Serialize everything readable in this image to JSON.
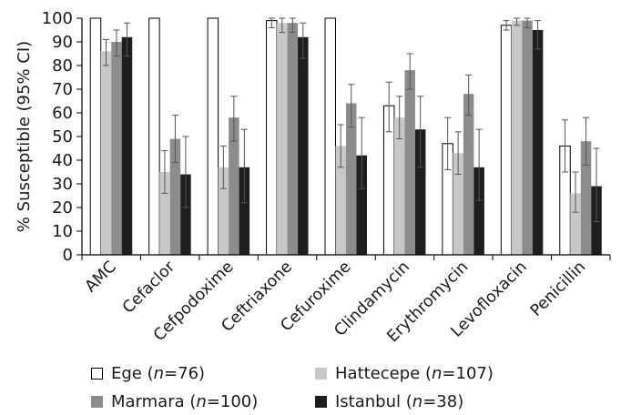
{
  "chart_data": {
    "type": "bar",
    "ylabel": "% Susceptible (95% CI)",
    "ylim": [
      0,
      100
    ],
    "yticks": [
      "0",
      "10",
      "20",
      "30",
      "40",
      "50",
      "60",
      "70",
      "80",
      "90",
      "100"
    ],
    "categories": [
      "AMC",
      "Cefaclor",
      "Cefpodoxime",
      "Ceftriaxone",
      "Cefuroxime",
      "Clindamycin",
      "Erythromycin",
      "Levofloxacin",
      "Penicillin"
    ],
    "series": [
      {
        "name": "Ege",
        "n": "76",
        "color": "#ffffff",
        "values": [
          100,
          100,
          100,
          99,
          100,
          63,
          47,
          97,
          46
        ],
        "ci_low": [
          100,
          100,
          100,
          96,
          100,
          52,
          36,
          95,
          35
        ],
        "ci_high": [
          100,
          100,
          100,
          100,
          100,
          73,
          58,
          99,
          57
        ]
      },
      {
        "name": "Hattecepe",
        "n": "107",
        "color": "#c8c8c8",
        "values": [
          86,
          35,
          37,
          98,
          46,
          58,
          43,
          99,
          26
        ],
        "ci_low": [
          80,
          26,
          28,
          94,
          37,
          49,
          34,
          97,
          18
        ],
        "ci_high": [
          91,
          44,
          46,
          100,
          55,
          67,
          52,
          100,
          35
        ]
      },
      {
        "name": "Marmara",
        "n": "100",
        "color": "#8c8c8c",
        "values": [
          90,
          49,
          58,
          98,
          64,
          78,
          68,
          99,
          48
        ],
        "ci_low": [
          84,
          39,
          48,
          94,
          54,
          70,
          59,
          96,
          38
        ],
        "ci_high": [
          95,
          59,
          67,
          100,
          72,
          85,
          76,
          100,
          58
        ]
      },
      {
        "name": "Istanbul",
        "n": "38",
        "color": "#1e1e1e",
        "values": [
          92,
          34,
          37,
          92,
          42,
          53,
          37,
          95,
          29
        ],
        "ci_low": [
          84,
          20,
          22,
          83,
          28,
          37,
          23,
          87,
          14
        ],
        "ci_high": [
          98,
          50,
          53,
          98,
          58,
          67,
          53,
          99,
          45
        ]
      }
    ]
  },
  "legend": {
    "n_label": "n",
    "eq": "=",
    "open_paren": " (",
    "close_paren": ")"
  }
}
